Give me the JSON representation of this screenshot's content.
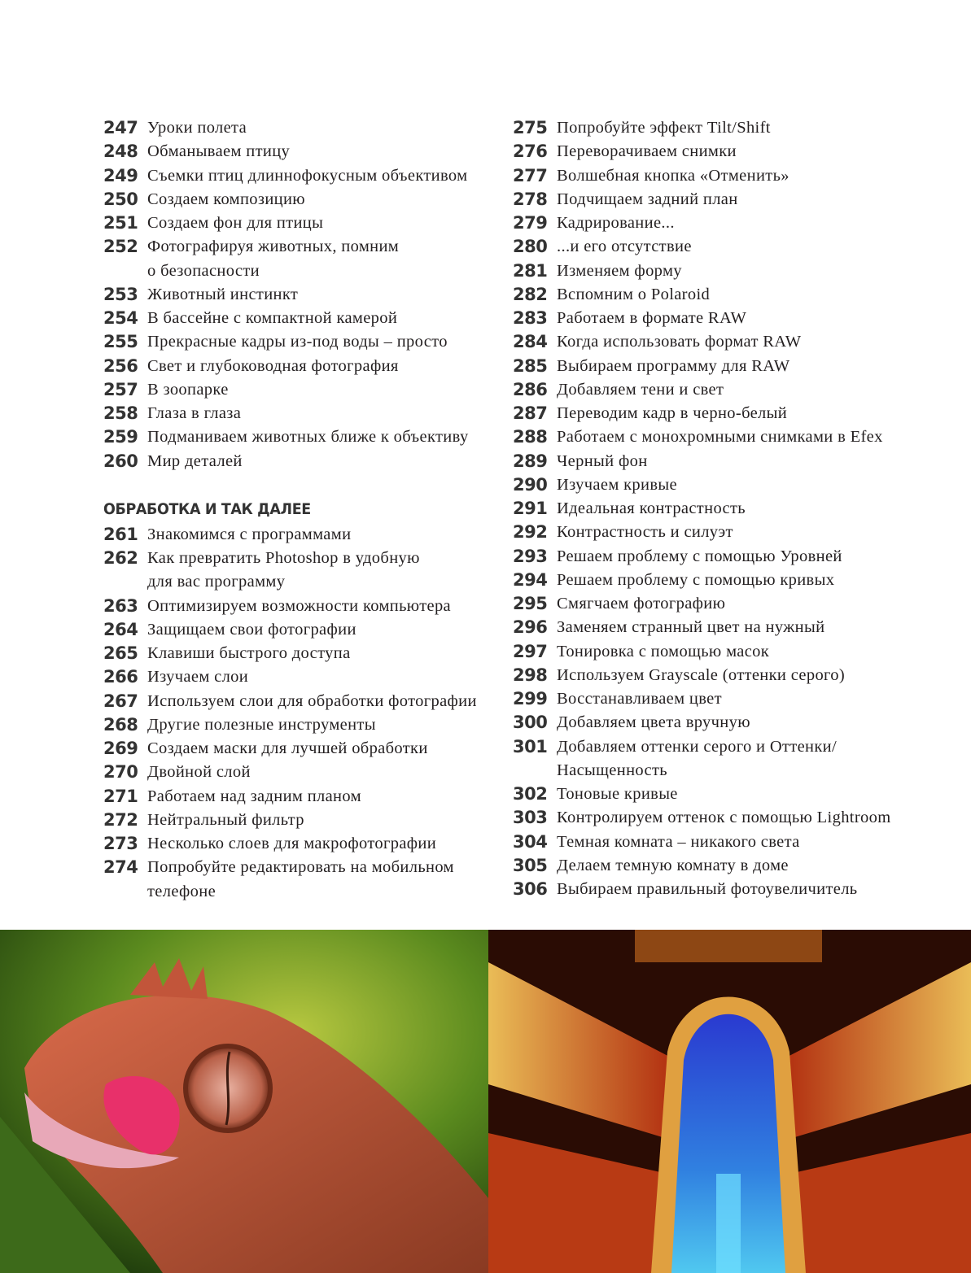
{
  "left_column": {
    "entries_top": [
      {
        "page": "247",
        "title": "Уроки полета"
      },
      {
        "page": "248",
        "title": "Обманываем птицу"
      },
      {
        "page": "249",
        "title": "Съемки птиц длиннофокусным объективом"
      },
      {
        "page": "250",
        "title": "Создаем композицию"
      },
      {
        "page": "251",
        "title": "Создаем фон для птицы"
      },
      {
        "page": "252",
        "title": "Фотографируя животных, помним\nо безопасности"
      },
      {
        "page": "253",
        "title": "Животный инстинкт"
      },
      {
        "page": "254",
        "title": "В бассейне с компактной камерой"
      },
      {
        "page": "255",
        "title": "Прекрасные кадры из-под воды – просто"
      },
      {
        "page": "256",
        "title": "Свет и глубоководная фотография"
      },
      {
        "page": "257",
        "title": "В зоопарке"
      },
      {
        "page": "258",
        "title": "Глаза в глаза"
      },
      {
        "page": "259",
        "title": "Подманиваем животных ближе к объективу"
      },
      {
        "page": "260",
        "title": "Мир деталей"
      }
    ],
    "section_heading": "ОБРАБОТКА И ТАК ДАЛЕЕ",
    "entries_bottom": [
      {
        "page": "261",
        "title": "Знакомимся с программами"
      },
      {
        "page": "262",
        "title": "Как превратить Photoshop в удобную\nдля вас программу"
      },
      {
        "page": "263",
        "title": "Оптимизируем возможности компьютера"
      },
      {
        "page": "264",
        "title": "Защищаем свои фотографии"
      },
      {
        "page": "265",
        "title": "Клавиши быстрого доступа"
      },
      {
        "page": "266",
        "title": "Изучаем слои"
      },
      {
        "page": "267",
        "title": "Используем слои для обработки фотографии"
      },
      {
        "page": "268",
        "title": "Другие полезные инструменты"
      },
      {
        "page": "269",
        "title": "Создаем маски для лучшей обработки"
      },
      {
        "page": "270",
        "title": "Двойной слой"
      },
      {
        "page": "271",
        "title": "Работаем над задним планом"
      },
      {
        "page": "272",
        "title": "Нейтральный фильтр"
      },
      {
        "page": "273",
        "title": "Несколько слоев для макрофотографии"
      },
      {
        "page": "274",
        "title": "Попробуйте редактировать на мобильном\nтелефоне"
      }
    ]
  },
  "right_column": {
    "entries": [
      {
        "page": "275",
        "title": "Попробуйте эффект Tilt/Shift"
      },
      {
        "page": "276",
        "title": "Переворачиваем снимки"
      },
      {
        "page": "277",
        "title": "Волшебная кнопка «Отменить»"
      },
      {
        "page": "278",
        "title": "Подчищаем задний план"
      },
      {
        "page": "279",
        "title": "Кадрирование..."
      },
      {
        "page": "280",
        "title": "...и его отсутствие"
      },
      {
        "page": "281",
        "title": "Изменяем форму"
      },
      {
        "page": "282",
        "title": "Вспомним о Polaroid"
      },
      {
        "page": "283",
        "title": "Работаем в формате RAW"
      },
      {
        "page": "284",
        "title": "Когда использовать формат RAW"
      },
      {
        "page": "285",
        "title": "Выбираем программу для RAW"
      },
      {
        "page": "286",
        "title": "Добавляем тени и свет"
      },
      {
        "page": "287",
        "title": "Переводим кадр в черно-белый"
      },
      {
        "page": "288",
        "title": "Работаем с монохромными снимками в Efex"
      },
      {
        "page": "289",
        "title": "Черный фон"
      },
      {
        "page": "290",
        "title": "Изучаем кривые"
      },
      {
        "page": "291",
        "title": "Идеальная контрастность"
      },
      {
        "page": "292",
        "title": "Контрастность и силуэт"
      },
      {
        "page": "293",
        "title": "Решаем проблему с помощью Уровней"
      },
      {
        "page": "294",
        "title": "Решаем проблему с помощью кривых"
      },
      {
        "page": "295",
        "title": "Смягчаем фотографию"
      },
      {
        "page": "296",
        "title": "Заменяем странный цвет на нужный"
      },
      {
        "page": "297",
        "title": "Тонировка с помощью масок"
      },
      {
        "page": "298",
        "title": "Используем Grayscale (оттенки серого)"
      },
      {
        "page": "299",
        "title": "Восстанавливаем цвет"
      },
      {
        "page": "300",
        "title": "Добавляем цвета вручную"
      },
      {
        "page": "301",
        "title": "Добавляем оттенки серого и Оттенки/\nНасыщенность"
      },
      {
        "page": "302",
        "title": "Тоновые кривые"
      },
      {
        "page": "303",
        "title": "Контролируем оттенок с помощью Lightroom"
      },
      {
        "page": "304",
        "title": "Темная комната – никакого света"
      },
      {
        "page": "305",
        "title": "Делаем темную комнату в доме"
      },
      {
        "page": "306",
        "title": "Выбираем правильный фотоувеличитель"
      }
    ]
  },
  "photos": {
    "left": "gecko-photo",
    "right": "escalator-light-trails-photo"
  }
}
